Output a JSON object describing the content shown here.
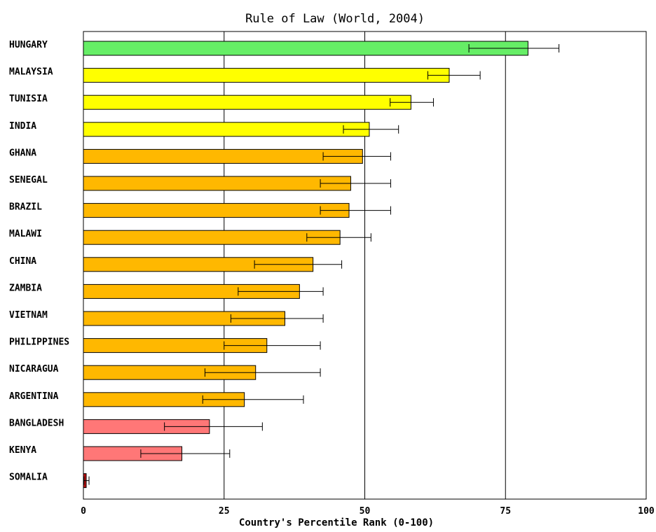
{
  "chart_data": {
    "type": "bar",
    "orientation": "horizontal",
    "title": "Rule of Law (World, 2004)",
    "xlabel": "Country's Percentile Rank (0-100)",
    "ylabel": "",
    "xlim": [
      0,
      100
    ],
    "xticks": [
      0,
      25,
      50,
      75,
      100
    ],
    "grid": "vertical",
    "legend": "none",
    "categories": [
      "HUNGARY",
      "MALAYSIA",
      "TUNISIA",
      "INDIA",
      "GHANA",
      "SENEGAL",
      "BRAZIL",
      "MALAWI",
      "CHINA",
      "ZAMBIA",
      "VIETNAM",
      "PHILIPPINES",
      "NICARAGUA",
      "ARGENTINA",
      "BANGLADESH",
      "KENYA",
      "SOMALIA"
    ],
    "values": [
      79.0,
      65.0,
      58.2,
      50.8,
      49.6,
      47.5,
      47.2,
      45.6,
      40.8,
      38.4,
      35.8,
      32.6,
      30.6,
      28.6,
      22.4,
      17.5,
      0.5
    ],
    "error_low": [
      68.5,
      61.2,
      54.5,
      46.2,
      42.6,
      42.1,
      42.1,
      39.7,
      30.4,
      27.5,
      26.2,
      25.0,
      21.6,
      21.2,
      14.4,
      10.2,
      0.1
    ],
    "error_high": [
      84.5,
      70.5,
      62.2,
      56.0,
      54.6,
      54.6,
      54.6,
      51.1,
      45.9,
      42.6,
      42.6,
      42.1,
      42.1,
      39.1,
      31.8,
      26.0,
      1.0
    ],
    "bar_colors": [
      "#66ee66",
      "#ffff00",
      "#ffff00",
      "#ffff00",
      "#ffb800",
      "#ffb800",
      "#ffb800",
      "#ffb800",
      "#ffb800",
      "#ffb800",
      "#ffb800",
      "#ffb800",
      "#ffb800",
      "#ffb800",
      "#ff7777",
      "#ff7777",
      "#bb1111"
    ]
  }
}
